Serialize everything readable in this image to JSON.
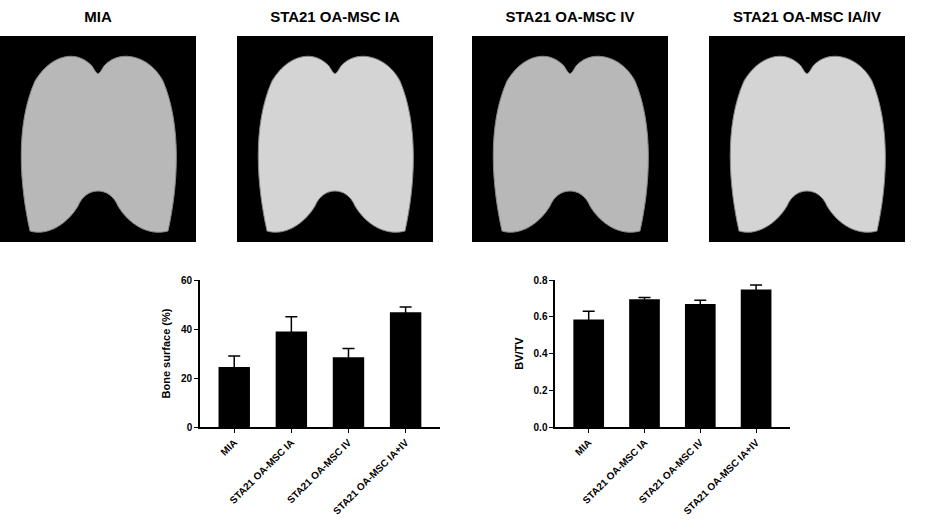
{
  "images": [
    {
      "label": "MIA"
    },
    {
      "label": "STA21 OA-MSC IA"
    },
    {
      "label": "STA21 OA-MSC IV"
    },
    {
      "label": "STA21 OA-MSC IA/IV"
    }
  ],
  "chart_data": [
    {
      "type": "bar",
      "y_label": "Bone surface (%)",
      "categories": [
        "MIA",
        "STA21 OA-MSC IA",
        "STA21 OA-MSC IV",
        "STA21 OA-MSC IA+IV"
      ],
      "values": [
        24.5,
        39,
        28.5,
        46.8
      ],
      "errors": [
        4.5,
        6,
        3.5,
        2.2
      ],
      "color": "#000000",
      "ylim": [
        0,
        60
      ],
      "yticks": [
        0,
        20,
        40,
        60
      ],
      "grid": false
    },
    {
      "type": "bar",
      "y_label": "BV/TV",
      "categories": [
        "MIA",
        "STA21 OA-MSC IA",
        "STA21 OA-MSC IV",
        "STA21 OA-MSC IA+IV"
      ],
      "values": [
        0.585,
        0.695,
        0.67,
        0.748
      ],
      "errors": [
        0.045,
        0.01,
        0.02,
        0.025
      ],
      "color": "#000000",
      "ylim": [
        0,
        0.8
      ],
      "yticks": [
        {
          "value": 0,
          "label": "0.0"
        },
        0.2,
        0.4,
        0.6,
        0.8
      ],
      "grid": false
    }
  ]
}
